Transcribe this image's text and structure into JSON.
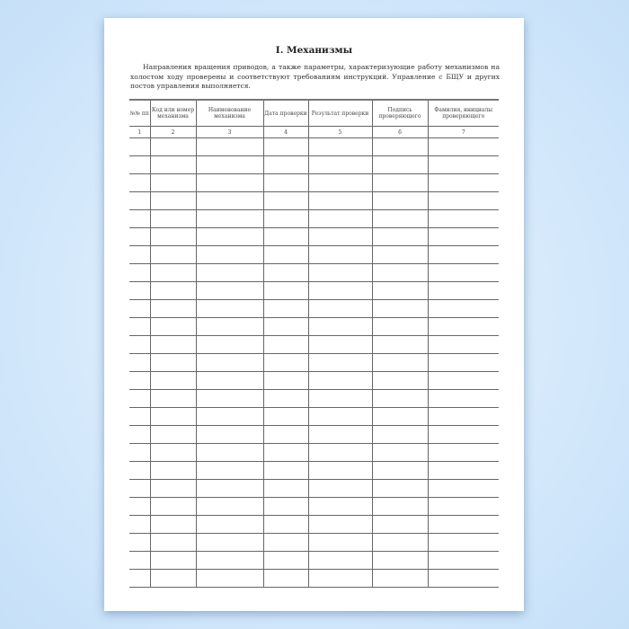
{
  "document": {
    "title": "I. Механизмы",
    "intro": "Направления вращения приводов, а также параметры, характеризующие работу механизмов на холостом ходу проверены и соответствуют требованиям инструкций. Управление с БЩУ и других постов управления выполняется.",
    "table": {
      "headers": [
        "№№ пп",
        "Код или номер механизма",
        "Наименование механизма",
        "Дата проверки",
        "Результат проверки",
        "Подпись проверяющего",
        "Фамилия, инициалы проверяющего"
      ],
      "column_numbers": [
        "1",
        "2",
        "3",
        "4",
        "5",
        "6",
        "7"
      ],
      "empty_rows": 25
    }
  }
}
